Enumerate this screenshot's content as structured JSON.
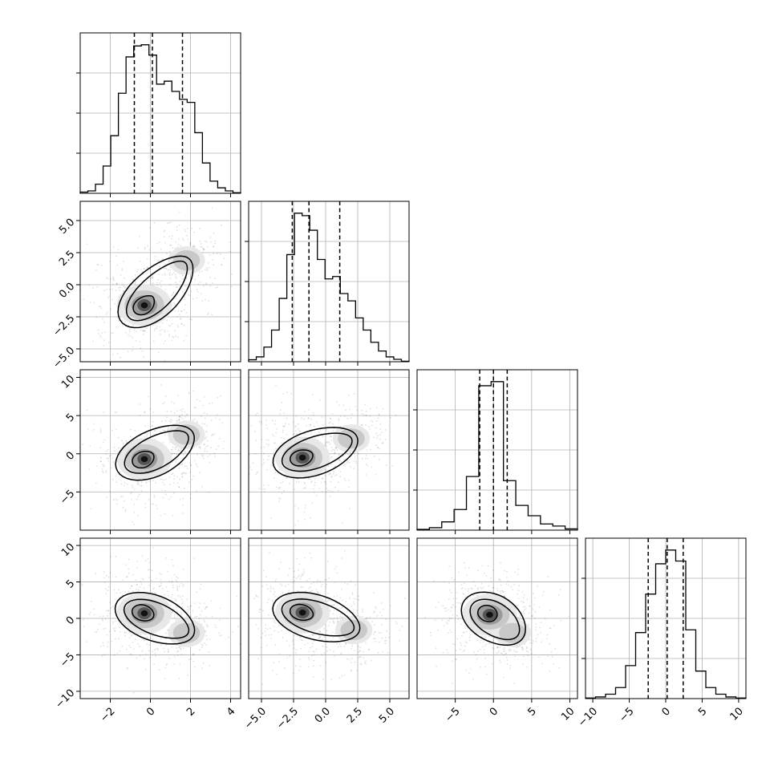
{
  "chart_data": {
    "type": "corner",
    "title": "",
    "parameters": [
      {
        "name": "",
        "range": [
          -3.5,
          4.5
        ],
        "ticks": [
          -2,
          0,
          2,
          4
        ],
        "tick_labels": [
          "−2",
          "0",
          "2",
          "4"
        ],
        "quantiles": [
          -0.8,
          0.1,
          1.6
        ],
        "hist": [
          0.2,
          0.4,
          1.5,
          4.5,
          9.5,
          16.5,
          22.5,
          24.3,
          24.5,
          22.8,
          18.0,
          18.5,
          16.8,
          15.5,
          15.0,
          10.0,
          5.0,
          2.0,
          0.9,
          0.4,
          0.1
        ]
      },
      {
        "name": "",
        "range": [
          -6.0,
          6.5
        ],
        "ticks": [
          -5.0,
          -2.5,
          0.0,
          2.5,
          5.0
        ],
        "tick_labels": [
          "−5.0",
          "−2.5",
          "0.0",
          "2.5",
          "5.0"
        ],
        "quantiles": [
          -2.6,
          -1.3,
          1.1
        ],
        "hist": [
          0.4,
          1.0,
          3.0,
          6.5,
          13.0,
          22.0,
          30.5,
          30.0,
          27.0,
          21.0,
          17.0,
          17.5,
          14.0,
          12.5,
          9.0,
          6.5,
          4.0,
          2.2,
          1.0,
          0.5,
          0.1
        ]
      },
      {
        "name": "",
        "range": [
          -10,
          11
        ],
        "ticks": [
          -5,
          0,
          5,
          10
        ],
        "tick_labels": [
          "−5",
          "0",
          "5",
          "10"
        ],
        "quantiles": [
          -1.8,
          0.0,
          1.8
        ],
        "hist": [
          0.2,
          0.6,
          2.0,
          5.0,
          13.0,
          35.0,
          36.0,
          12.0,
          6.0,
          3.5,
          1.5,
          1.0,
          0.3
        ]
      },
      {
        "name": "",
        "range": [
          -11,
          11
        ],
        "ticks": [
          -10,
          -5,
          0,
          5,
          10
        ],
        "tick_labels": [
          "−10",
          "−5",
          "0",
          "5",
          "10"
        ],
        "quantiles": [
          -2.4,
          0.2,
          2.4
        ],
        "hist": [
          0.1,
          0.3,
          0.8,
          2.0,
          6.0,
          12.0,
          19.0,
          24.5,
          27.0,
          25.0,
          12.5,
          5.0,
          2.0,
          0.8,
          0.3,
          0.1
        ]
      }
    ],
    "hist_y_ticks": [
      [
        0.25,
        0.5,
        0.75
      ],
      [
        0.25,
        0.5,
        0.75
      ],
      [
        0.25,
        0.5,
        0.75
      ],
      [
        0.25,
        0.5,
        0.75
      ]
    ],
    "y_tick_labels": {
      "1": [
        "5.0",
        "2.5",
        "0.0",
        "−2.5",
        "−5.0"
      ],
      "2": [
        "10",
        "5",
        "0",
        "−5"
      ],
      "3": [
        "10",
        "5",
        "0",
        "−5",
        "−10"
      ]
    },
    "y_ticks": {
      "1": [
        5.0,
        2.5,
        0.0,
        -2.5,
        -5.0
      ],
      "2": [
        10,
        5,
        0,
        -5
      ],
      "3": [
        10,
        5,
        0,
        -5,
        -10
      ]
    },
    "y_ranges": {
      "1": [
        -6.0,
        6.5
      ],
      "2": [
        -10,
        11
      ],
      "3": [
        -11,
        11
      ]
    },
    "density_mode_centers": {
      "1-0": [
        [
          -0.3,
          -1.6
        ],
        [
          1.8,
          1.9
        ]
      ],
      "2-0": [
        [
          -0.3,
          -0.7
        ],
        [
          1.8,
          2.5
        ]
      ],
      "2-1": [
        [
          -1.8,
          -0.5
        ],
        [
          2.0,
          2.0
        ]
      ],
      "3-0": [
        [
          -0.3,
          0.7
        ],
        [
          1.8,
          -2.0
        ]
      ],
      "3-1": [
        [
          -1.8,
          0.8
        ],
        [
          2.2,
          -1.6
        ]
      ],
      "3-2": [
        [
          -0.5,
          0.5
        ],
        [
          2.5,
          -2.0
        ]
      ]
    },
    "grid": true,
    "dashed_quantile_lines": true
  }
}
